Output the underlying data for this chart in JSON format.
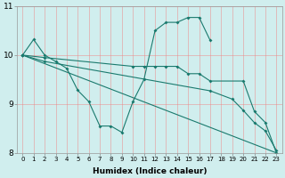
{
  "background_color": "#d0eeee",
  "line_color": "#1a7a6e",
  "grid_color": "#f08080",
  "xlabel": "Humidex (Indice chaleur)",
  "xlim": [
    -0.5,
    23.5
  ],
  "ylim": [
    8,
    11
  ],
  "yticks": [
    8,
    9,
    10,
    11
  ],
  "series": [
    {
      "x": [
        0,
        1,
        2,
        3,
        4,
        5,
        6,
        7,
        8,
        9,
        10,
        11,
        12,
        13,
        14,
        15,
        16,
        17
      ],
      "y": [
        10.0,
        10.32,
        10.0,
        9.87,
        9.73,
        9.28,
        9.05,
        8.55,
        8.55,
        8.42,
        9.05,
        9.5,
        10.5,
        10.67,
        10.67,
        10.77,
        10.77,
        10.3
      ]
    },
    {
      "x": [
        0,
        23
      ],
      "y": [
        10.0,
        8.0
      ]
    },
    {
      "x": [
        0,
        2,
        10,
        11,
        12,
        13,
        14,
        15,
        16,
        17,
        20,
        21,
        22,
        23
      ],
      "y": [
        10.0,
        9.95,
        9.77,
        9.77,
        9.77,
        9.77,
        9.77,
        9.62,
        9.62,
        9.47,
        9.47,
        8.85,
        8.62,
        8.0
      ]
    },
    {
      "x": [
        0,
        2,
        17,
        19,
        20,
        21,
        22,
        23
      ],
      "y": [
        10.0,
        9.87,
        9.27,
        9.1,
        8.87,
        8.62,
        8.45,
        8.05
      ]
    }
  ]
}
